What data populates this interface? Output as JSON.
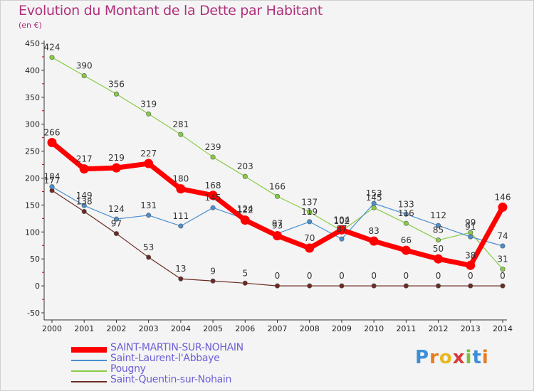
{
  "title": "Evolution du Montant de la Dette par Habitant",
  "subtitle": "(en €)",
  "logo_text": "Proxiti",
  "chart_data": {
    "type": "line",
    "title": "Evolution du Montant de la Dette par Habitant",
    "ylabel": "(en €)",
    "xlabel": "",
    "ylim": [
      -50,
      450
    ],
    "yticks": [
      -50,
      0,
      50,
      100,
      150,
      200,
      250,
      300,
      350,
      400,
      450
    ],
    "x": [
      "2000",
      "2001",
      "2002",
      "2003",
      "2004",
      "2005",
      "2006",
      "2007",
      "2008",
      "2009",
      "2010",
      "2011",
      "2012",
      "2013",
      "2014"
    ],
    "grid": false,
    "legend_position": "bottom-left",
    "series": [
      {
        "name": "SAINT-MARTIN-SUR-NOHAIN",
        "color": "#ff0000",
        "values": [
          266,
          217,
          219,
          227,
          180,
          168,
          122,
          93,
          70,
          104,
          83,
          66,
          50,
          38,
          146
        ]
      },
      {
        "name": "Saint-Laurent-l'Abbaye",
        "color": "#4a8fd0",
        "values": [
          184,
          149,
          124,
          131,
          111,
          145,
          124,
          97,
          119,
          87,
          153,
          133,
          112,
          91,
          74
        ]
      },
      {
        "name": "Pougny",
        "color": "#88cc44",
        "values": [
          424,
          390,
          356,
          319,
          281,
          239,
          203,
          166,
          137,
          102,
          145,
          116,
          85,
          99,
          31
        ]
      },
      {
        "name": "Saint-Quentin-sur-Nohain",
        "color": "#6b2a22",
        "values": [
          177,
          138,
          97,
          53,
          13,
          9,
          5,
          0,
          0,
          0,
          0,
          0,
          0,
          0,
          0
        ]
      }
    ]
  }
}
